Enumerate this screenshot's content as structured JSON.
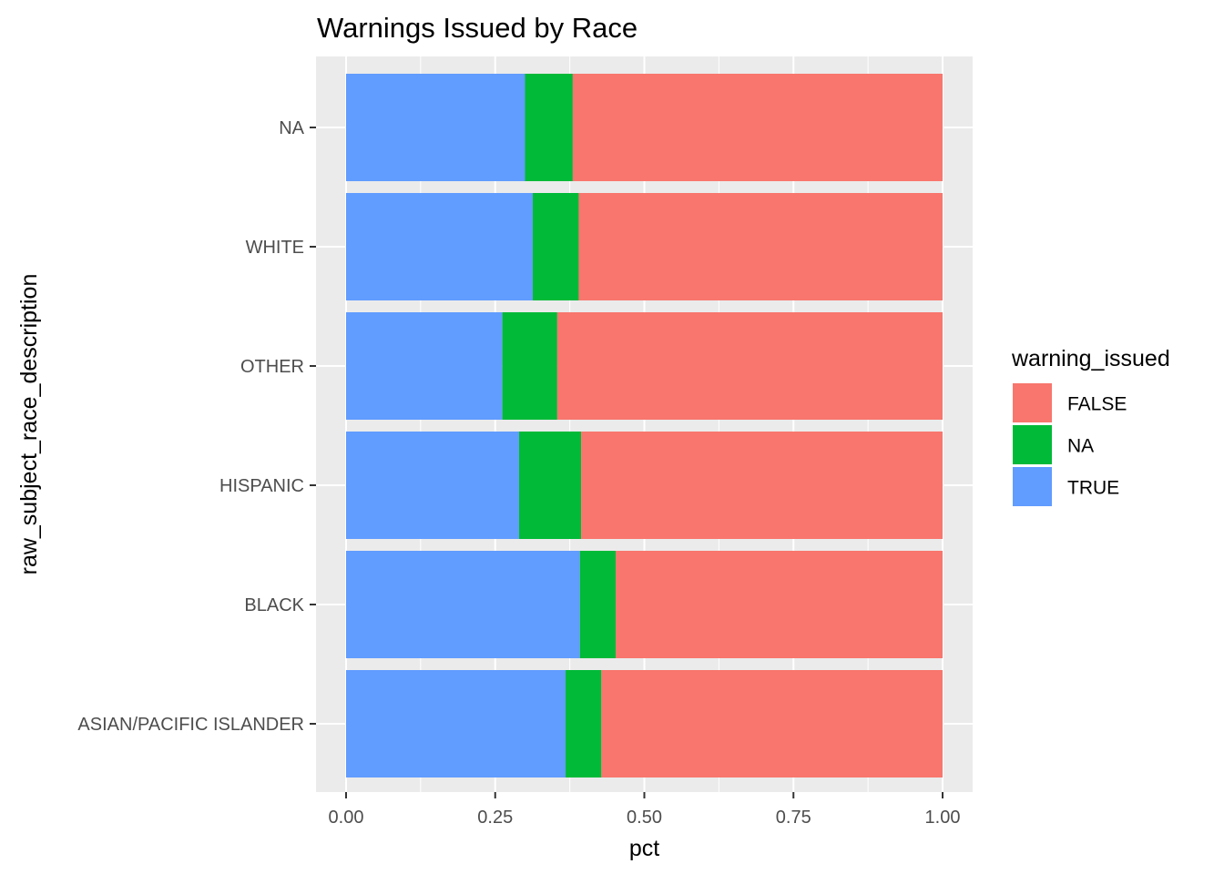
{
  "chart_data": {
    "type": "bar",
    "orientation": "horizontal",
    "stacked": true,
    "title": "Warnings Issued by Race",
    "xlabel": "pct",
    "ylabel": "raw_subject_race_description",
    "xlim": [
      0,
      1
    ],
    "xticks": [
      "0.00",
      "0.25",
      "0.50",
      "0.75",
      "1.00"
    ],
    "categories": [
      "NA",
      "WHITE",
      "OTHER",
      "HISPANIC",
      "BLACK",
      "ASIAN/PACIFIC ISLANDER"
    ],
    "series": [
      {
        "name": "TRUE",
        "color": "#619CFF",
        "values": [
          0.3,
          0.313,
          0.262,
          0.29,
          0.392,
          0.368
        ]
      },
      {
        "name": "NA",
        "color": "#00BA38",
        "values": [
          0.08,
          0.077,
          0.092,
          0.104,
          0.06,
          0.06
        ]
      },
      {
        "name": "FALSE",
        "color": "#F8766D",
        "values": [
          0.62,
          0.61,
          0.646,
          0.606,
          0.548,
          0.572
        ]
      }
    ],
    "legend": {
      "title": "warning_issued",
      "position": "right",
      "entries": [
        {
          "label": "FALSE",
          "color": "#F8766D"
        },
        {
          "label": "NA",
          "color": "#00BA38"
        },
        {
          "label": "TRUE",
          "color": "#619CFF"
        }
      ]
    },
    "grid": true,
    "panel_background": "#EBEBEB",
    "grid_color": "#FFFFFF"
  }
}
